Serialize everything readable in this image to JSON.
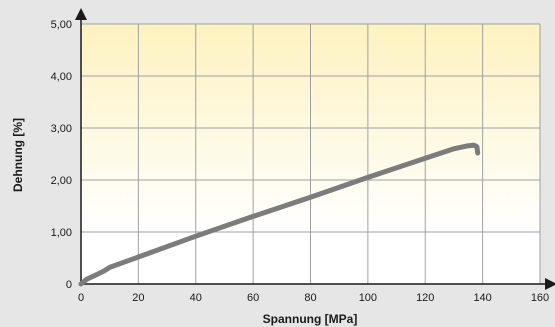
{
  "chart_data": {
    "type": "line",
    "title": "",
    "xlabel": "Spannung [MPa]",
    "ylabel": "Dehnung [%]",
    "xlim": [
      0,
      160
    ],
    "ylim": [
      0,
      5
    ],
    "x_ticks": [
      "0",
      "20",
      "40",
      "60",
      "80",
      "100",
      "120",
      "140",
      "160"
    ],
    "y_ticks": [
      "0",
      "1,00",
      "2,00",
      "3,00",
      "4,00",
      "5,00"
    ],
    "grid": true,
    "series": [
      {
        "name": "",
        "color": "#7c7c7c",
        "points": [
          [
            0,
            0
          ],
          [
            2,
            0.09
          ],
          [
            5,
            0.17
          ],
          [
            8,
            0.25
          ],
          [
            10,
            0.32
          ],
          [
            20,
            0.52
          ],
          [
            40,
            0.92
          ],
          [
            60,
            1.3
          ],
          [
            80,
            1.67
          ],
          [
            100,
            2.05
          ],
          [
            120,
            2.42
          ],
          [
            130,
            2.6
          ],
          [
            135,
            2.66
          ],
          [
            137,
            2.67
          ],
          [
            138,
            2.64
          ],
          [
            138.3,
            2.52
          ]
        ]
      }
    ]
  },
  "colors": {
    "page_background": "#e6e6e6",
    "band_top": "#fdf2c0",
    "band_bottom": "#ffffff",
    "grid": "#a0a0a0",
    "axis": "#1a1a1a",
    "line": "#7c7c7c"
  }
}
